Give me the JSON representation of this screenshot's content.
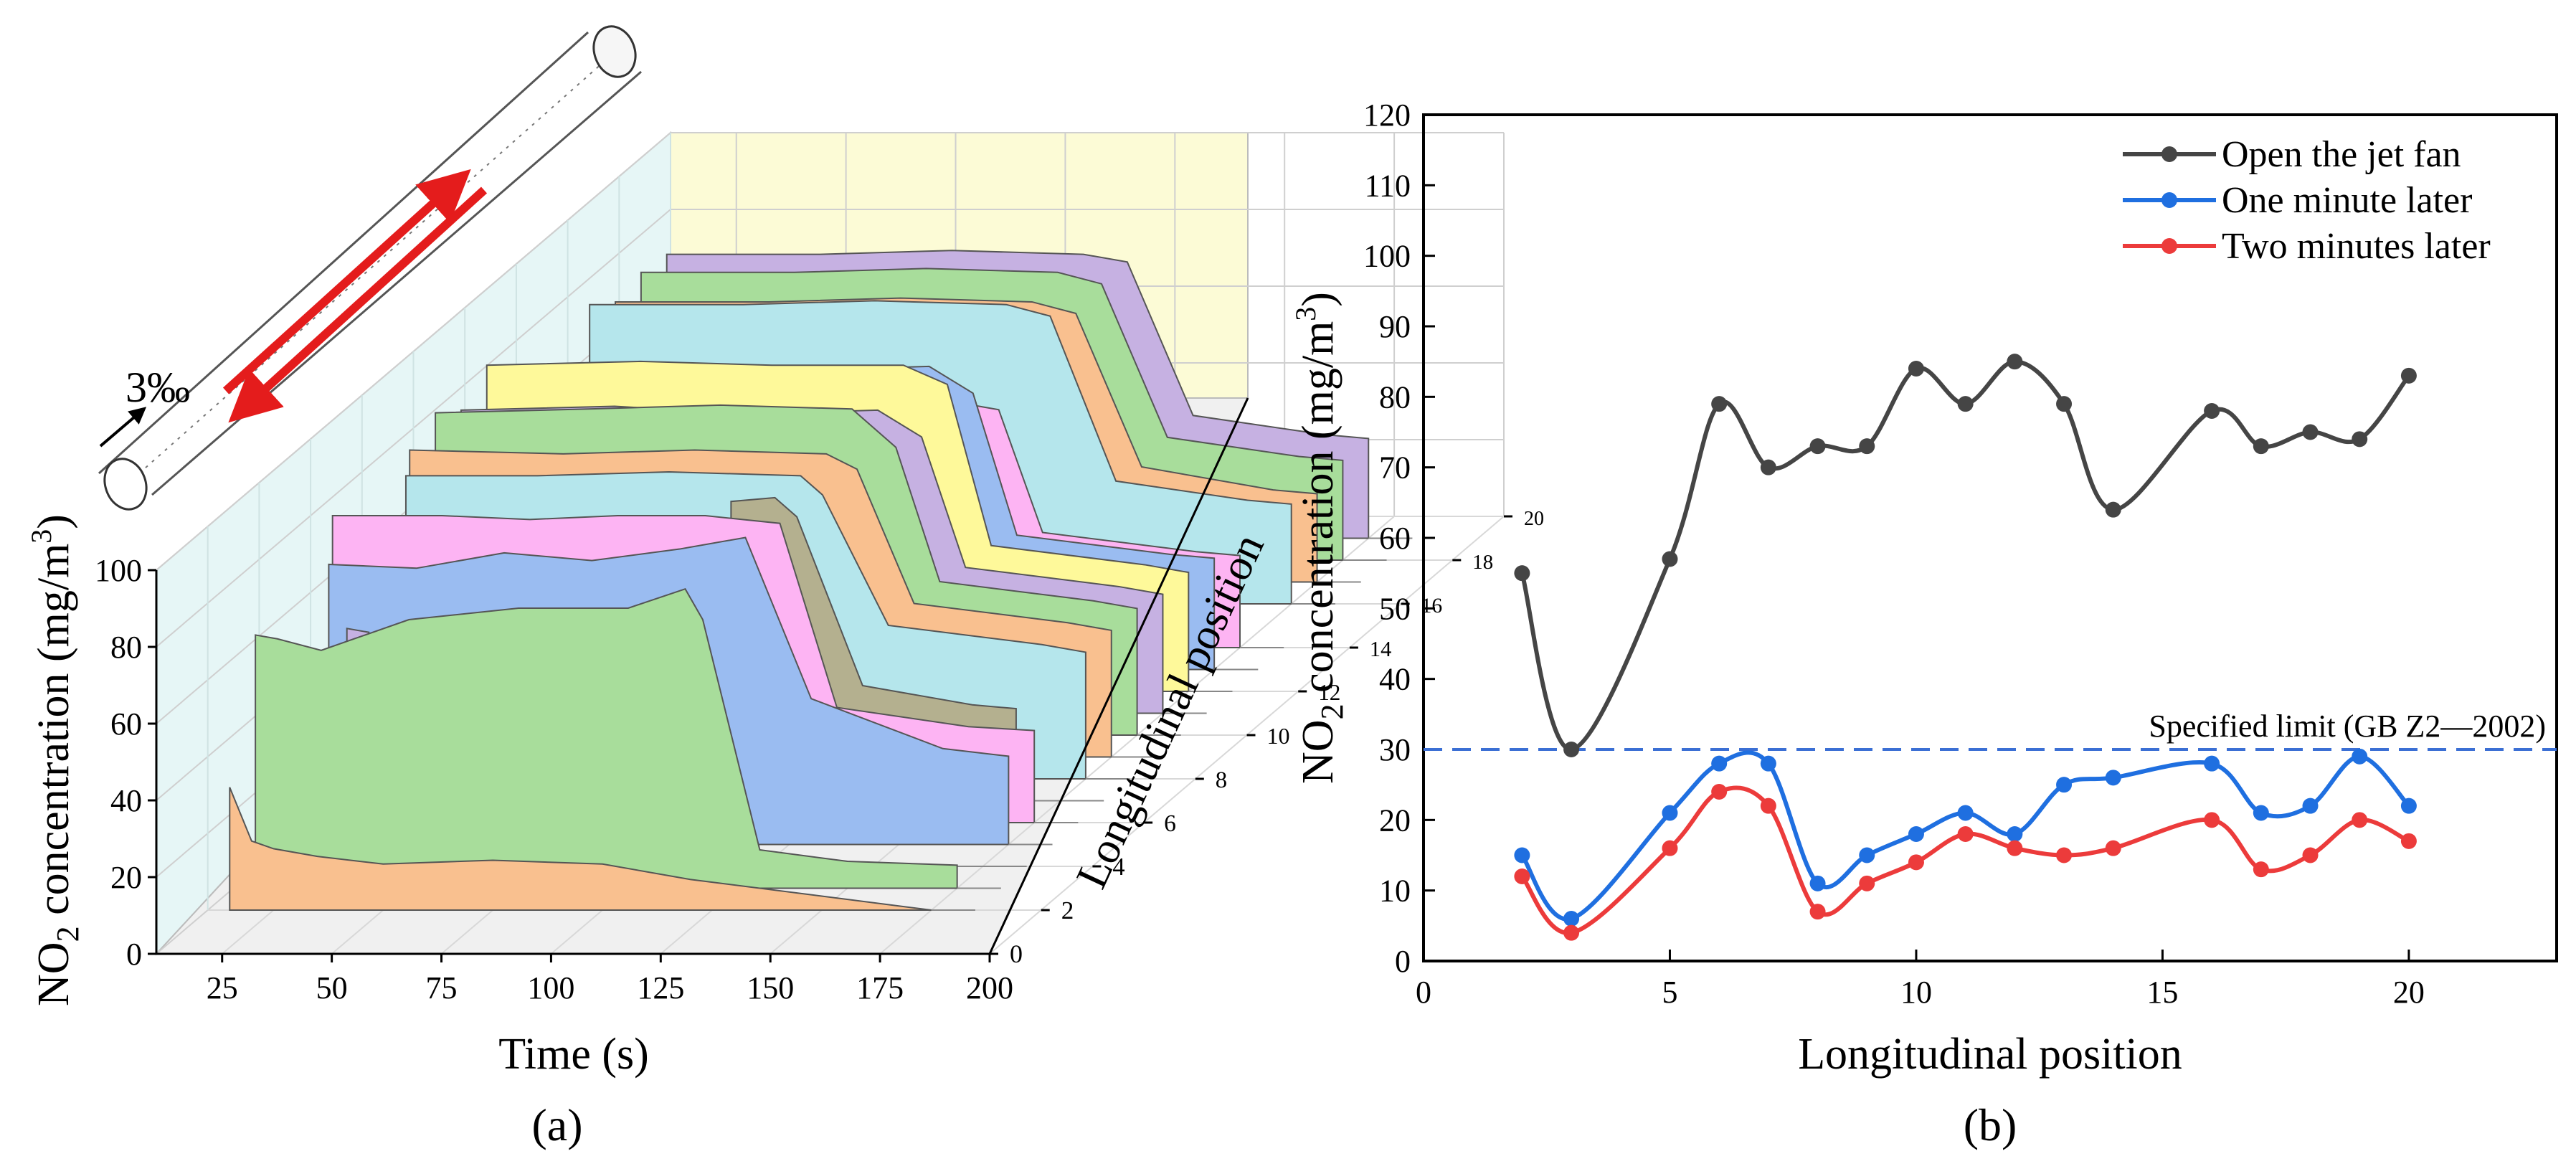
{
  "chart_data": [
    {
      "panel": "(a)",
      "type": "area",
      "title": "",
      "xlabel": "Time (s)",
      "ylabel_main": "NO",
      "ylabel_sub": "2",
      "ylabel_rest": " concentration (mg/m",
      "ylabel_sup": "3",
      "ylabel_end": ")",
      "zlabel": "Longitudinal position",
      "xticks": [
        "25",
        "50",
        "75",
        "100",
        "125",
        "150",
        "175",
        "200"
      ],
      "yticks": [
        "0",
        "20",
        "40",
        "60",
        "80",
        "100"
      ],
      "zticks": [
        "0",
        "2",
        "4",
        "6",
        "8",
        "10",
        "12",
        "14",
        "16",
        "18",
        "20"
      ],
      "slope_label": "3‰",
      "xlim": [
        10,
        200
      ],
      "ylim": [
        0,
        100
      ],
      "zlim": [
        0,
        20
      ],
      "series": [
        {
          "name": "position 2",
          "z": 2,
          "color": "#f9c08f",
          "times": [
            15,
            20,
            25,
            35,
            50,
            75,
            100,
            120,
            175
          ],
          "values": [
            32,
            18,
            16,
            14,
            12,
            13,
            12,
            8,
            0
          ]
        },
        {
          "name": "position 3",
          "z": 3,
          "color": "#a8dd9b",
          "times": [
            15,
            20,
            30,
            50,
            75,
            100,
            113,
            117,
            130,
            150,
            175
          ],
          "values": [
            66,
            65,
            62,
            70,
            73,
            73,
            78,
            70,
            10,
            7,
            6
          ]
        },
        {
          "name": "position 4",
          "z": 4,
          "color": "#c6b1e2",
          "times": [
            30,
            35
          ],
          "values": [
            62,
            61
          ]
        },
        {
          "name": "position 5",
          "z": 5,
          "color": "#9abcf1",
          "times": [
            20,
            40,
            60,
            80,
            100,
            115,
            130,
            160,
            175
          ],
          "values": [
            73,
            72,
            76,
            74,
            77,
            80,
            38,
            25,
            23
          ]
        },
        {
          "name": "position 6",
          "z": 6,
          "color": "#fdb4f3",
          "times": [
            15,
            40,
            60,
            80,
            100,
            117,
            130,
            160,
            175
          ],
          "values": [
            80,
            80,
            79,
            80,
            80,
            78,
            30,
            25,
            24
          ]
        },
        {
          "name": "position 7",
          "z": 7,
          "color": "#b4b08f",
          "times": [
            100,
            110,
            115,
            130,
            155,
            165
          ],
          "values": [
            78,
            79,
            74,
            30,
            25,
            24
          ]
        },
        {
          "name": "position 8",
          "z": 8,
          "color": "#b5e6ec",
          "times": [
            20,
            50,
            80,
            110,
            115,
            130,
            165,
            175
          ],
          "values": [
            79,
            79,
            80,
            79,
            74,
            40,
            35,
            33
          ]
        },
        {
          "name": "position 9",
          "z": 9,
          "color": "#f9c08f",
          "times": [
            15,
            50,
            80,
            110,
            117,
            130,
            165,
            175
          ],
          "values": [
            80,
            79,
            80,
            79,
            75,
            40,
            35,
            33
          ]
        },
        {
          "name": "position 10",
          "z": 10,
          "color": "#a8dd9b",
          "times": [
            15,
            50,
            80,
            110,
            120,
            130,
            165,
            175
          ],
          "values": [
            84,
            85,
            86,
            85,
            75,
            40,
            35,
            33
          ]
        },
        {
          "name": "position 11",
          "z": 11,
          "color": "#c6b1e2",
          "times": [
            15,
            50,
            80,
            110,
            120,
            130,
            165,
            175
          ],
          "values": [
            79,
            80,
            78,
            79,
            72,
            38,
            33,
            31
          ]
        },
        {
          "name": "position 12",
          "z": 12,
          "color": "#fef99a",
          "times": [
            15,
            50,
            80,
            110,
            120,
            130,
            165,
            175
          ],
          "values": [
            85,
            86,
            85,
            85,
            80,
            38,
            33,
            31
          ]
        },
        {
          "name": "position 13",
          "z": 13,
          "color": "#9abcf1",
          "times": [
            15,
            50,
            80,
            110,
            120,
            130,
            165,
            175
          ],
          "values": [
            79,
            80,
            78,
            79,
            72,
            35,
            30,
            29
          ]
        },
        {
          "name": "position 14",
          "z": 14,
          "color": "#fdb4f3",
          "times": [
            110,
            120,
            130,
            165,
            175
          ],
          "values": [
            64,
            62,
            30,
            25,
            24
          ]
        },
        {
          "name": "position 16",
          "z": 16,
          "color": "#b5e6ec",
          "times": [
            15,
            50,
            80,
            110,
            120,
            135,
            165,
            175
          ],
          "values": [
            78,
            78,
            79,
            78,
            75,
            32,
            27,
            26
          ]
        },
        {
          "name": "position 17",
          "z": 17,
          "color": "#f9c08f",
          "times": [
            15,
            50,
            80,
            110,
            120,
            135,
            165,
            175
          ],
          "values": [
            73,
            73,
            74,
            73,
            70,
            30,
            24,
            23
          ]
        },
        {
          "name": "position 18",
          "z": 18,
          "color": "#a8dd9b",
          "times": [
            15,
            50,
            80,
            110,
            120,
            135,
            165,
            175
          ],
          "values": [
            75,
            75,
            76,
            75,
            72,
            32,
            27,
            26
          ]
        },
        {
          "name": "position 19",
          "z": 19,
          "color": "#c6b1e2",
          "times": [
            15,
            50,
            80,
            110,
            120,
            135,
            165,
            175
          ],
          "values": [
            74,
            74,
            75,
            74,
            72,
            32,
            27,
            26
          ]
        }
      ]
    },
    {
      "panel": "(b)",
      "type": "line",
      "title": "",
      "xlabel": "Longitudinal position",
      "ylabel_main": "NO",
      "ylabel_sub": "2",
      "ylabel_rest": " concentration (mg/m",
      "ylabel_sup": "3",
      "ylabel_end": ")",
      "xticks": [
        "0",
        "5",
        "10",
        "15",
        "20"
      ],
      "yticks": [
        "0",
        "10",
        "20",
        "30",
        "40",
        "50",
        "60",
        "70",
        "80",
        "90",
        "100",
        "110",
        "120"
      ],
      "xlim": [
        0,
        23
      ],
      "ylim": [
        0,
        120
      ],
      "grid": false,
      "legend_position": "top-right",
      "x": [
        2,
        3,
        5,
        6,
        7,
        8,
        9,
        10,
        11,
        12,
        13,
        14,
        16,
        17,
        18,
        19,
        20
      ],
      "series": [
        {
          "name": "Open the jet fan",
          "color": "#454545",
          "values": [
            55,
            30,
            57,
            79,
            70,
            73,
            73,
            84,
            79,
            85,
            79,
            64,
            78,
            73,
            75,
            74,
            83
          ]
        },
        {
          "name": "One minute later",
          "color": "#1f6fe0",
          "values": [
            15,
            6,
            21,
            28,
            28,
            11,
            15,
            18,
            21,
            18,
            25,
            26,
            28,
            21,
            22,
            29,
            22
          ]
        },
        {
          "name": "Two minutes later",
          "color": "#ec3b3b",
          "values": [
            12,
            4,
            16,
            24,
            22,
            7,
            11,
            14,
            18,
            16,
            15,
            16,
            20,
            13,
            15,
            20,
            17
          ]
        }
      ],
      "reference_line": {
        "label": "Specified limit (GB Z2—2002)",
        "value": 30,
        "color": "#3b6fd4"
      }
    }
  ]
}
